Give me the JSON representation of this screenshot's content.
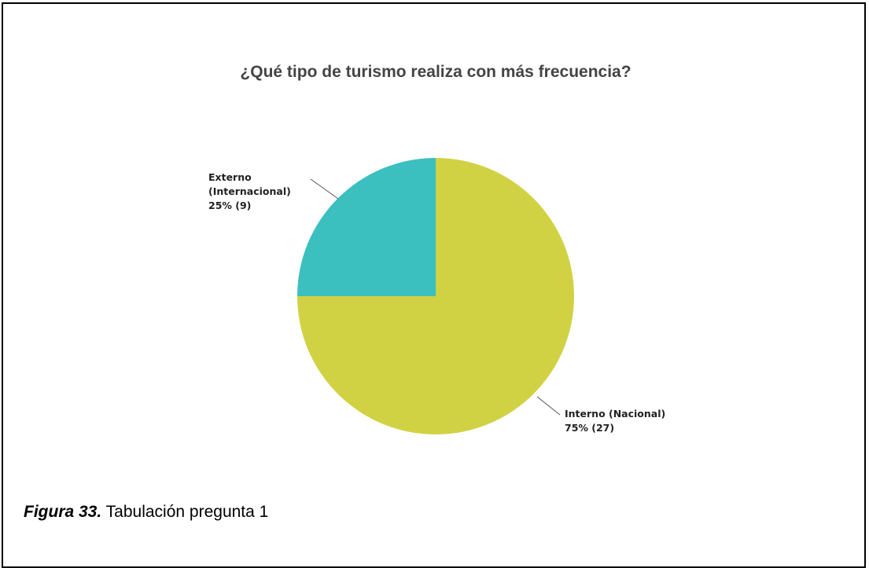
{
  "chart_data": {
    "type": "pie",
    "title": "¿Qué tipo de turismo realiza con más frecuencia?",
    "categories": [
      "Interno (Nacional)",
      "Externo (Internacional)"
    ],
    "values": [
      75,
      25
    ],
    "value_labels": [
      "75% (27)",
      "25% (9)"
    ],
    "colors": [
      "#d0d243",
      "#3bbfbf"
    ]
  },
  "caption": {
    "label": "Figura 33.",
    "text": "Tabulación pregunta 1"
  }
}
